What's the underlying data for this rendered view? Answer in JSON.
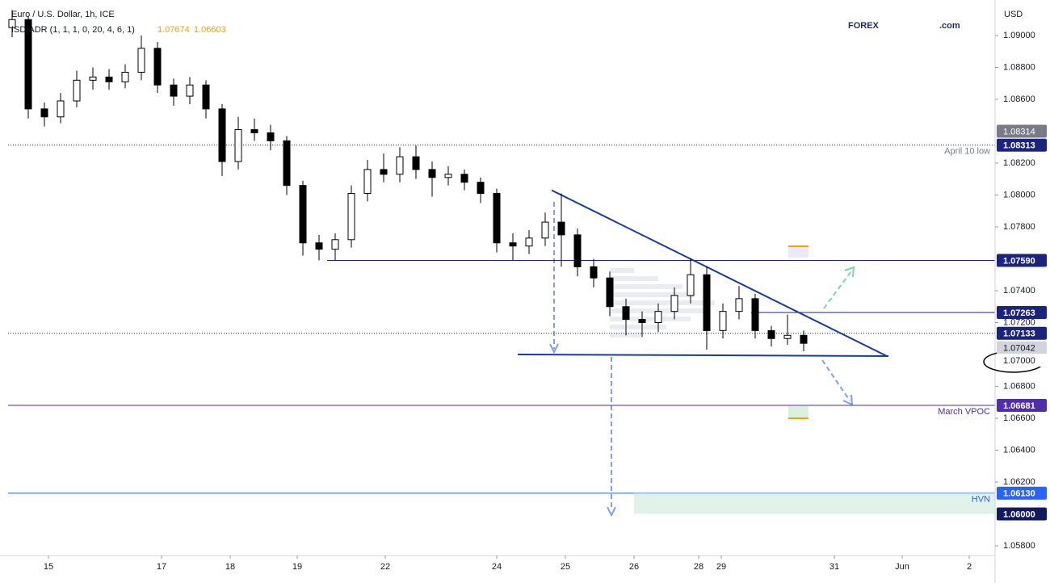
{
  "logo": {
    "brand": "FOREX",
    "suffix": ".com"
  },
  "chart_data": {
    "type": "candlestick",
    "title": "Euro / U.S. Dollar, 1h, ICE",
    "indicator": {
      "label": "ISD]ADR (1, 1, 1, 0, 20, 4, 6, 1)",
      "values": [
        1.07674,
        1.06603
      ],
      "color": "#f0a500"
    },
    "y_label": "USD",
    "up_color": "#ffffff",
    "down_color": "#000000",
    "edge_color": "#000000",
    "x": [
      0.5,
      2.5,
      4.5,
      6.5,
      8.5,
      10.5,
      12.5,
      14.5,
      16.5,
      18.5,
      20.5,
      22.5,
      24.5,
      26.5,
      28.5,
      30.5,
      32.5,
      34.5,
      36.5,
      38.5,
      40.5,
      42.5,
      44.5,
      46.5,
      48.5,
      50.5,
      52.5,
      54.5,
      56.5,
      58.5,
      60.5,
      62.5,
      64.5,
      66.5,
      68.5,
      70.5,
      72.5,
      74.5,
      76.5,
      78.5,
      80.5,
      82.5,
      84.5,
      86.5,
      88.5,
      90.5,
      92.5,
      94.5,
      96.5,
      98.5
    ],
    "open": [
      1.0905,
      1.091,
      1.0854,
      1.0849,
      1.0859,
      1.0872,
      1.0874,
      1.0871,
      1.0877,
      1.0892,
      1.0869,
      1.0862,
      1.0869,
      1.0854,
      1.0821,
      1.0841,
      1.0839,
      1.0834,
      1.0806,
      1.077,
      1.0766,
      1.0772,
      1.0801,
      1.0816,
      1.0813,
      1.0824,
      1.0816,
      1.0811,
      1.0813,
      1.0808,
      1.0801,
      1.077,
      1.0768,
      1.0773,
      1.0783,
      1.0775,
      1.0755,
      1.0748,
      1.073,
      1.0722,
      1.072,
      1.0727,
      1.0737,
      1.075,
      1.0715,
      1.0727,
      1.0735,
      1.0715,
      1.071,
      1.0712
    ],
    "high": [
      1.0916,
      1.0912,
      1.0858,
      1.0864,
      1.0878,
      1.088,
      1.0879,
      1.0882,
      1.09,
      1.0896,
      1.0873,
      1.0874,
      1.0872,
      1.0857,
      1.0849,
      1.0848,
      1.0844,
      1.0837,
      1.0809,
      1.0775,
      1.0776,
      1.0806,
      1.0822,
      1.0826,
      1.083,
      1.0831,
      1.0821,
      1.0818,
      1.0816,
      1.0811,
      1.0804,
      1.0776,
      1.0778,
      1.0789,
      1.0801,
      1.0779,
      1.076,
      1.0752,
      1.0735,
      1.0727,
      1.0732,
      1.0742,
      1.076,
      1.0755,
      1.0732,
      1.0743,
      1.0738,
      1.0718,
      1.0725,
      1.0715
    ],
    "low": [
      1.0899,
      1.0848,
      1.0843,
      1.0845,
      1.0855,
      1.0866,
      1.0866,
      1.0867,
      1.0872,
      1.0864,
      1.0856,
      1.0857,
      1.0848,
      1.0812,
      1.0816,
      1.0834,
      1.0828,
      1.08,
      1.0762,
      1.0759,
      1.0759,
      1.0767,
      1.0796,
      1.0808,
      1.0808,
      1.081,
      1.0799,
      1.0806,
      1.0803,
      1.0795,
      1.0764,
      1.0759,
      1.0763,
      1.0768,
      1.0755,
      1.0749,
      1.0742,
      1.0724,
      1.0712,
      1.0711,
      1.0714,
      1.0722,
      1.0732,
      1.0703,
      1.071,
      1.0722,
      1.071,
      1.0705,
      1.0706,
      1.0702
    ],
    "close": [
      1.091,
      1.0854,
      1.0849,
      1.0859,
      1.0872,
      1.0874,
      1.0871,
      1.0877,
      1.0892,
      1.0869,
      1.0862,
      1.0869,
      1.0854,
      1.0821,
      1.0841,
      1.0839,
      1.0834,
      1.0806,
      1.077,
      1.0766,
      1.0772,
      1.0801,
      1.0816,
      1.0813,
      1.0824,
      1.0816,
      1.0811,
      1.0813,
      1.0808,
      1.0801,
      1.077,
      1.0768,
      1.0773,
      1.0783,
      1.0775,
      1.0755,
      1.0748,
      1.073,
      1.0722,
      1.072,
      1.0727,
      1.0737,
      1.075,
      1.0715,
      1.0727,
      1.0735,
      1.0715,
      1.071,
      1.0712,
      1.0707
    ],
    "xlim": [
      0,
      122.2
    ],
    "xticks": [
      {
        "value": 5,
        "label": "15"
      },
      {
        "value": 19,
        "label": "17"
      },
      {
        "value": 27.5,
        "label": "18"
      },
      {
        "value": 35.8,
        "label": "19"
      },
      {
        "value": 46.7,
        "label": "22"
      },
      {
        "value": 60.5,
        "label": "24"
      },
      {
        "value": 69,
        "label": "25"
      },
      {
        "value": 77.5,
        "label": "26"
      },
      {
        "value": 85.5,
        "label": "28"
      },
      {
        "value": 88.3,
        "label": "29"
      },
      {
        "value": 102.3,
        "label": "31"
      },
      {
        "value": 110.7,
        "label": "Jun"
      },
      {
        "value": 119,
        "label": "2"
      }
    ],
    "ylim": [
      1.05739,
      1.09223
    ],
    "yticks": [
      {
        "value": 1.09,
        "label": "1.09000"
      },
      {
        "value": 1.088,
        "label": "1.08800"
      },
      {
        "value": 1.086,
        "label": "1.08600"
      },
      {
        "value": 1.082,
        "label": "1.08200"
      },
      {
        "value": 1.08,
        "label": "1.08000"
      },
      {
        "value": 1.078,
        "label": "1.07800"
      },
      {
        "value": 1.074,
        "label": "1.07400"
      },
      {
        "value": 1.072,
        "label": "1.07200"
      },
      {
        "value": 1.068,
        "label": "1.06800"
      },
      {
        "value": 1.066,
        "label": "1.06600"
      },
      {
        "value": 1.064,
        "label": "1.06400"
      },
      {
        "value": 1.062,
        "label": "1.06200"
      },
      {
        "value": 1.058,
        "label": "1.05800"
      }
    ],
    "levels": [
      {
        "value": 1.08313,
        "label": "1.08313",
        "note": "April 10 low",
        "from": 0,
        "style": "dotted",
        "color": "#1a237e"
      },
      {
        "value": 1.0759,
        "label": "1.07590",
        "from": 39.5,
        "style": "solid",
        "color": "#1a237e"
      },
      {
        "value": 1.07263,
        "label": "1.07263",
        "from": 92,
        "style": "solid",
        "color": "#1a237e"
      },
      {
        "value": 1.07133,
        "label": "1.07133",
        "from": 0,
        "style": "dotted",
        "color": "#1a237e"
      },
      {
        "value": 1.06681,
        "label": "1.06681",
        "note": "March VPOC",
        "from": 0,
        "style": "solid",
        "color": "#512da8"
      },
      {
        "value": 1.0613,
        "label": "1.06130",
        "note": "HVN",
        "from": 0,
        "style": "solid",
        "color": "#2962ff"
      },
      {
        "value": 1.06,
        "label": "1.06000",
        "from": 77.5,
        "style": "none",
        "color": "#131a5e"
      }
    ],
    "axis_badges": [
      {
        "value": 1.08314,
        "label": "1.08314",
        "color": "#787b86"
      },
      {
        "value": 1.07042,
        "label": "1.07042",
        "color": "#d1d4dc"
      },
      {
        "value": 1.07,
        "label": "1.07000",
        "color": "#ffffff"
      }
    ],
    "trendlines": [
      {
        "x": [
          67.3,
          108.8
        ],
        "y": [
          1.0803,
          1.0699
        ],
        "color": "#1a3a9e"
      },
      {
        "x": [
          63.1,
          109
        ],
        "y": [
          1.07,
          1.0699
        ],
        "color": "#1a3a9e"
      }
    ]
  }
}
